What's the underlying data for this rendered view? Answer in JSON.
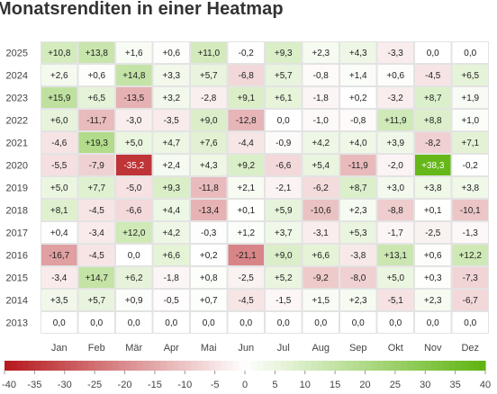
{
  "title": "Monatsrenditen in einer Heatmap",
  "chart_data": {
    "type": "heatmap",
    "title": "Monatsrenditen in einer Heatmap",
    "months": [
      "Jan",
      "Feb",
      "Mär",
      "Apr",
      "Mai",
      "Jun",
      "Jul",
      "Aug",
      "Sep",
      "Okt",
      "Nov",
      "Dez"
    ],
    "years": [
      "2025",
      "2024",
      "2023",
      "2022",
      "2021",
      "2020",
      "2019",
      "2018",
      "2017",
      "2016",
      "2015",
      "2014",
      "2013"
    ],
    "values": [
      [
        10.8,
        13.8,
        1.6,
        0.6,
        11.0,
        -0.2,
        9.3,
        2.3,
        4.3,
        -3.3,
        0.0,
        0.0
      ],
      [
        2.6,
        0.6,
        14.8,
        3.3,
        5.7,
        -6.8,
        5.7,
        -0.8,
        1.4,
        0.6,
        -4.5,
        6.5
      ],
      [
        15.9,
        6.5,
        -13.5,
        3.2,
        -2.8,
        9.1,
        6.1,
        -1.8,
        0.2,
        -3.2,
        8.7,
        1.9
      ],
      [
        6.0,
        -11.7,
        -3.0,
        -3.5,
        9.0,
        -12.8,
        -0.0,
        -1.0,
        -0.8,
        11.9,
        8.8,
        1.0
      ],
      [
        -4.6,
        19.3,
        5.0,
        4.7,
        7.6,
        -4.4,
        -0.9,
        4.2,
        4.0,
        3.9,
        -8.2,
        7.1
      ],
      [
        -5.5,
        -7.9,
        -35.2,
        2.4,
        4.3,
        9.2,
        -6.6,
        5.4,
        -11.9,
        -2.0,
        38.3,
        -0.2
      ],
      [
        5.0,
        7.7,
        -5.0,
        9.3,
        -11.8,
        2.1,
        -2.1,
        -6.2,
        8.7,
        3.0,
        3.8,
        3.8
      ],
      [
        8.1,
        -4.5,
        -6.6,
        4.4,
        -13.4,
        0.1,
        5.9,
        -10.6,
        2.3,
        -8.8,
        0.1,
        -10.1
      ],
      [
        0.4,
        -3.4,
        12.0,
        4.2,
        -0.3,
        1.2,
        3.7,
        -3.1,
        5.3,
        -1.7,
        -2.5,
        -1.3
      ],
      [
        -16.7,
        -4.5,
        0.0,
        6.6,
        0.2,
        -21.1,
        9.0,
        6.6,
        -3.8,
        13.1,
        0.6,
        12.2
      ],
      [
        -3.4,
        14.7,
        6.2,
        -1.8,
        0.8,
        -2.5,
        5.2,
        -9.2,
        -8.0,
        5.0,
        0.3,
        -7.3
      ],
      [
        3.5,
        5.7,
        0.9,
        -0.5,
        0.7,
        -4.5,
        -1.5,
        1.5,
        2.3,
        -5.1,
        2.3,
        -6.7
      ],
      [
        0.0,
        0.0,
        0.0,
        0.0,
        0.0,
        0.0,
        0.0,
        0.0,
        0.0,
        0.0,
        0.0,
        0.0
      ]
    ],
    "color_scale": {
      "min": -40,
      "max": 40,
      "ticks": [
        -40,
        -35,
        -30,
        -25,
        -20,
        -15,
        -10,
        -5,
        0,
        5,
        10,
        15,
        20,
        25,
        30,
        35,
        40
      ],
      "negative_color": "#b5181c",
      "positive_color": "#5fb40f",
      "neutral_color": "#ffffff"
    },
    "legend_placement": "bottom"
  }
}
